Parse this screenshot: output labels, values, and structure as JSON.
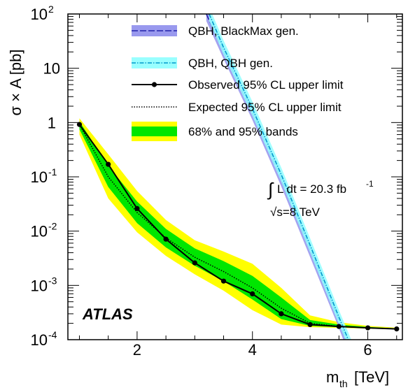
{
  "chart_data": {
    "type": "line",
    "title": "",
    "xlabel_main": "m",
    "xlabel_sub": "th",
    "xlabel_unit": "[TeV]",
    "ylabel": "σ × A [pb]",
    "xlim": [
      0.8,
      6.6
    ],
    "ylim": [
      0.0001,
      100
    ],
    "yscale": "log",
    "grid": false,
    "legend_position": "top-right",
    "x_ticks": [
      2,
      4,
      6
    ],
    "x_tick_labels": [
      "2",
      "4",
      "6"
    ],
    "y_ticks": [
      100,
      10,
      1,
      0.1,
      0.01,
      0.001,
      0.0001
    ],
    "y_tick_labels": [
      {
        "base": "10",
        "exp": "2"
      },
      {
        "base": "10",
        "exp": ""
      },
      {
        "base": "1",
        "exp": ""
      },
      {
        "base": "10",
        "exp": "-1"
      },
      {
        "base": "10",
        "exp": "-2"
      },
      {
        "base": "10",
        "exp": "-3"
      },
      {
        "base": "10",
        "exp": "-4"
      }
    ],
    "colors": {
      "band95": "#ffff00",
      "band68": "#00e600",
      "blackmax_band": "#9999ee",
      "blackmax_line": "#2222aa",
      "qbh_band": "#99ffff",
      "qbh_line": "#0099cc",
      "observed": "#000000"
    },
    "series": [
      {
        "name": "Observed 95% CL upper limit",
        "style": "solid-markers",
        "x": [
          1.0,
          1.5,
          2.0,
          2.5,
          3.0,
          3.5,
          4.0,
          4.5,
          5.0,
          5.5,
          6.0,
          6.5
        ],
        "y": [
          0.92,
          0.17,
          0.026,
          0.0071,
          0.0026,
          0.0012,
          0.0007,
          0.0003,
          0.00019,
          0.000175,
          0.000165,
          0.000158
        ]
      },
      {
        "name": "Expected 95% CL upper limit",
        "style": "dotted",
        "x": [
          1.0,
          1.5,
          2.0,
          2.5,
          3.0,
          3.5,
          4.0,
          4.5,
          5.0,
          5.5,
          6.0,
          6.5
        ],
        "y": [
          0.92,
          0.1,
          0.022,
          0.0075,
          0.0033,
          0.0018,
          0.0009,
          0.00038,
          0.0002,
          0.000175,
          0.000165,
          0.000158
        ]
      },
      {
        "name": "68% and 95% bands",
        "style": "bands",
        "x": [
          1.0,
          1.5,
          2.0,
          2.5,
          3.0,
          3.5,
          4.0,
          4.5,
          5.0,
          5.5,
          6.0,
          6.5
        ],
        "lo95": [
          0.6,
          0.04,
          0.0095,
          0.0035,
          0.0016,
          0.0008,
          0.00035,
          0.00019,
          0.00017,
          0.000165,
          0.00016,
          0.000155
        ],
        "lo68": [
          0.75,
          0.065,
          0.014,
          0.005,
          0.0023,
          0.0012,
          0.00055,
          0.00024,
          0.00018,
          0.00017,
          0.000163,
          0.000156
        ],
        "hi68": [
          1.05,
          0.16,
          0.035,
          0.011,
          0.0048,
          0.0028,
          0.0015,
          0.0006,
          0.00023,
          0.00019,
          0.000172,
          0.000162
        ],
        "hi95": [
          1.2,
          0.26,
          0.055,
          0.016,
          0.0068,
          0.0042,
          0.0025,
          0.0009,
          0.00028,
          0.00021,
          0.00018,
          0.000166
        ]
      },
      {
        "name": "QBH, BlackMax gen.",
        "style": "dashed-band",
        "x": [
          3.2,
          3.5,
          4.0,
          4.5,
          5.0,
          5.5,
          5.7
        ],
        "y": [
          100,
          20,
          1.5,
          0.09,
          0.0045,
          0.00022,
          6e-05
        ],
        "band_factor": 1.35
      },
      {
        "name": "QBH, QBH gen.",
        "style": "dashdot-band",
        "x": [
          3.25,
          3.5,
          4.0,
          4.5,
          5.0,
          5.5,
          5.75
        ],
        "y": [
          100,
          24,
          1.8,
          0.11,
          0.0055,
          0.00026,
          6e-05
        ],
        "band_factor": 1.35
      }
    ],
    "legend": [
      {
        "key": "blackmax",
        "label": "QBH, BlackMax gen."
      },
      {
        "key": "qbh",
        "label": "QBH, QBH gen."
      },
      {
        "key": "observed",
        "label": "Observed 95% CL upper limit"
      },
      {
        "key": "expected",
        "label": "Expected 95% CL upper limit"
      },
      {
        "key": "bands",
        "label": "68% and 95% bands"
      }
    ],
    "annotations": {
      "atlas": "ATLAS",
      "lumi_main": "L dt = 20.3 fb",
      "lumi_exp": "-1",
      "sqrts": "√s=8 TeV"
    }
  }
}
